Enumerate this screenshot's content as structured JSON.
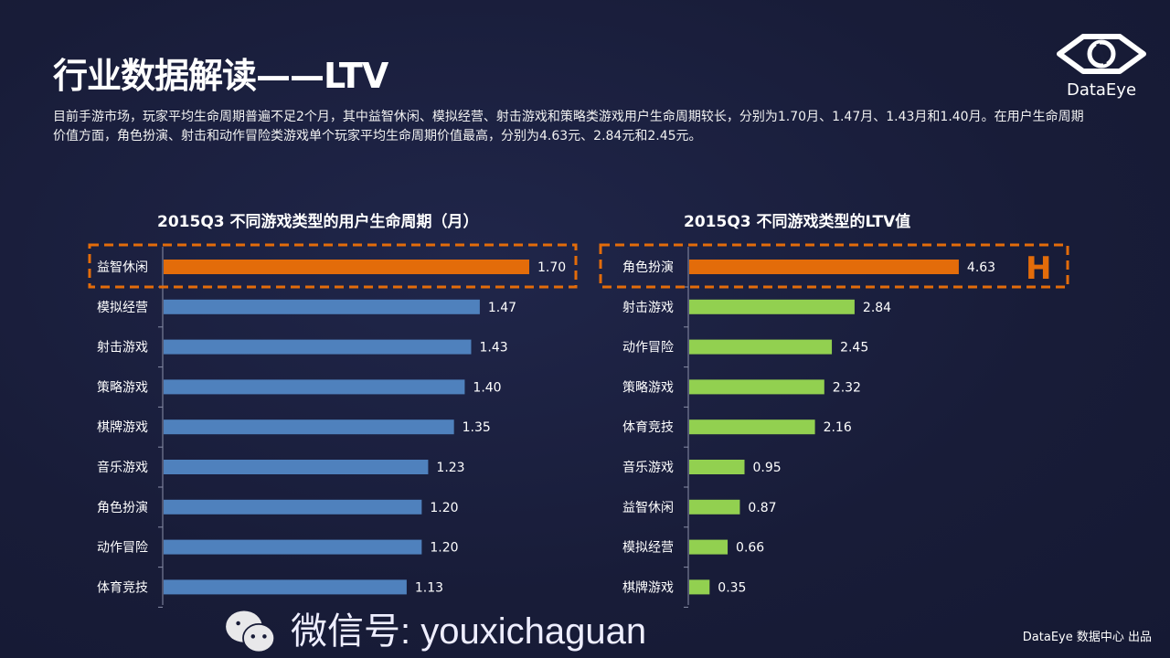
{
  "title": "行业数据解读——LTV",
  "description": "目前手游市场，玩家平均生命周期普遍不足2个月，其中益智休闲、模拟经营、射击游戏和策略类游戏用户生命周期较长，分别为1.70月、1.47月、1.43月和1.40月。在用户生命周期价值方面，角色扮演、射击和动作冒险类游戏单个玩家平均生命周期价值最高，分别为4.63元、2.84元和2.45元。",
  "logo": {
    "text": "DataEye"
  },
  "watermark": "微信号: youxichaguan",
  "credit": "DataEye 数据中心 出品",
  "colors": {
    "highlight": "#e36c0a",
    "left_bar": "#4f81bd",
    "right_bar": "#92d050",
    "dash": "#e36c0a"
  },
  "chart_data": [
    {
      "type": "bar",
      "orientation": "horizontal",
      "title": "2015Q3 不同游戏类型的用户生命周期（月）",
      "categories": [
        "益智休闲",
        "模拟经营",
        "射击游戏",
        "策略游戏",
        "棋牌游戏",
        "音乐游戏",
        "角色扮演",
        "动作冒险",
        "体育竞技"
      ],
      "values": [
        1.7,
        1.47,
        1.43,
        1.4,
        1.35,
        1.23,
        1.2,
        1.2,
        1.13
      ],
      "highlighted": "益智休闲"
    },
    {
      "type": "bar",
      "orientation": "horizontal",
      "title": "2015Q3 不同游戏类型的LTV值",
      "categories": [
        "角色扮演",
        "射击游戏",
        "动作冒险",
        "策略游戏",
        "体育竞技",
        "音乐游戏",
        "益智休闲",
        "模拟经营",
        "棋牌游戏"
      ],
      "values": [
        4.63,
        2.84,
        2.45,
        2.32,
        2.16,
        0.95,
        0.87,
        0.66,
        0.35
      ],
      "highlighted": "角色扮演",
      "highlight_mark": "H"
    }
  ]
}
